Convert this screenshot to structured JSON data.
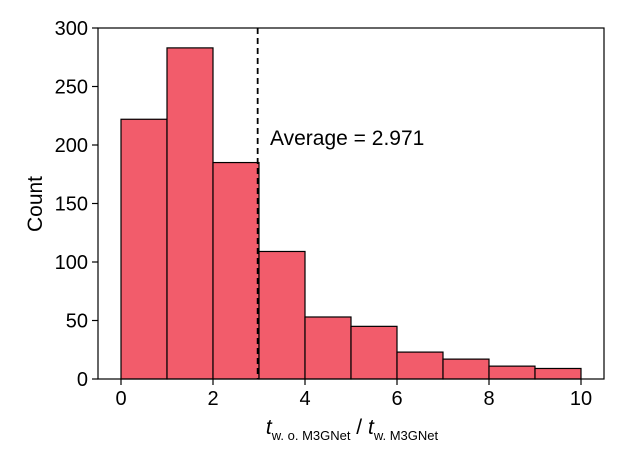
{
  "chart_data": {
    "type": "bar",
    "subtype": "histogram",
    "bin_edges": [
      0,
      1,
      2,
      3,
      4,
      5,
      6,
      7,
      8,
      9,
      10
    ],
    "values": [
      222,
      283,
      185,
      109,
      53,
      45,
      23,
      17,
      11,
      9
    ],
    "title": "",
    "xlabel": {
      "numerator_main": "t",
      "numerator_sub": "w. o. M3GNet",
      "separator": " / ",
      "denominator_main": "t",
      "denominator_sub": "w. M3GNet"
    },
    "ylabel": "Count",
    "xlim": [
      -0.5,
      10.5
    ],
    "ylim": [
      0,
      300
    ],
    "xticks": [
      0,
      2,
      4,
      6,
      8,
      10
    ],
    "yticks": [
      0,
      50,
      100,
      150,
      200,
      250,
      300
    ],
    "grid": false,
    "legend": "none",
    "bar_color": "#f25c6b",
    "edge_color": "#000000",
    "average_line": {
      "x": 2.971,
      "style": "dashed",
      "color": "#000000",
      "label": "Average = 2.971"
    }
  }
}
